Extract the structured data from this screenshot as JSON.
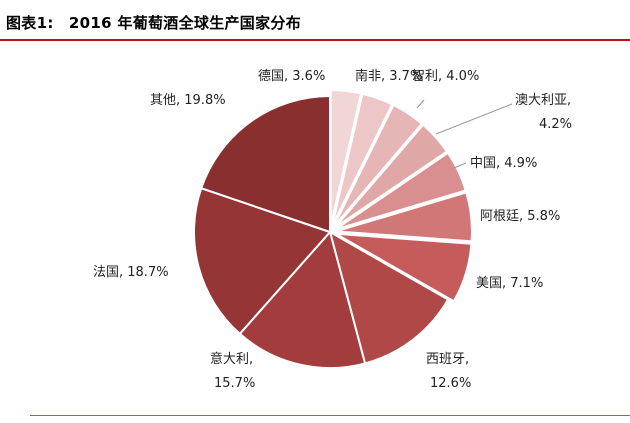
{
  "title": "图表1:　2016 年葡萄酒全球生产国家分布",
  "chart_data": {
    "type": "pie",
    "title": "图表1:　2016 年葡萄酒全球生产国家分布",
    "slices": [
      {
        "label": "德国",
        "value": 3.6,
        "text": "德国, 3.6%",
        "color": "#f1d6d6"
      },
      {
        "label": "南非",
        "value": 3.7,
        "text": "南非, 3.7%",
        "color": "#edc7c7"
      },
      {
        "label": "智利",
        "value": 4.0,
        "text": "智利, 4.0%",
        "color": "#e6b5b5"
      },
      {
        "label": "澳大利亚",
        "value": 4.2,
        "text": [
          "澳大利亚,",
          "4.2%"
        ],
        "color": "#e0a7a7"
      },
      {
        "label": "中国",
        "value": 4.9,
        "text": "中国, 4.9%",
        "color": "#d98f8f"
      },
      {
        "label": "阿根廷",
        "value": 5.8,
        "text": "阿根廷, 5.8%",
        "color": "#d27777"
      },
      {
        "label": "美国",
        "value": 7.1,
        "text": "美国, 7.1%",
        "color": "#c55b5b"
      },
      {
        "label": "西班牙",
        "value": 12.6,
        "text": [
          "西班牙,",
          "12.6%"
        ],
        "color": "#b04848"
      },
      {
        "label": "意大利",
        "value": 15.7,
        "text": [
          "意大利,",
          "15.7%"
        ],
        "color": "#a33c3c"
      },
      {
        "label": "法国",
        "value": 18.7,
        "text": "法国, 18.7%",
        "color": "#963535"
      },
      {
        "label": "其他",
        "value": 19.8,
        "text": "其他, 19.8%",
        "color": "#8a2f2f"
      }
    ]
  }
}
